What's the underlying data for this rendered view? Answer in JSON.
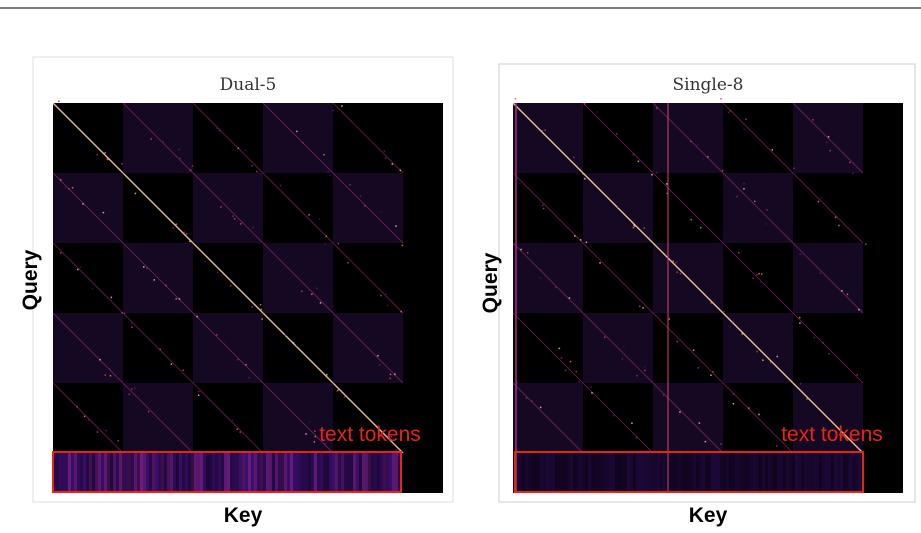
{
  "panels": [
    {
      "title": "Dual-5",
      "y_label": "Query",
      "x_label": "Key",
      "annotation": "text tokens"
    },
    {
      "title": "Single-8",
      "y_label": "Query",
      "x_label": "Key",
      "annotation": "text tokens"
    }
  ]
}
